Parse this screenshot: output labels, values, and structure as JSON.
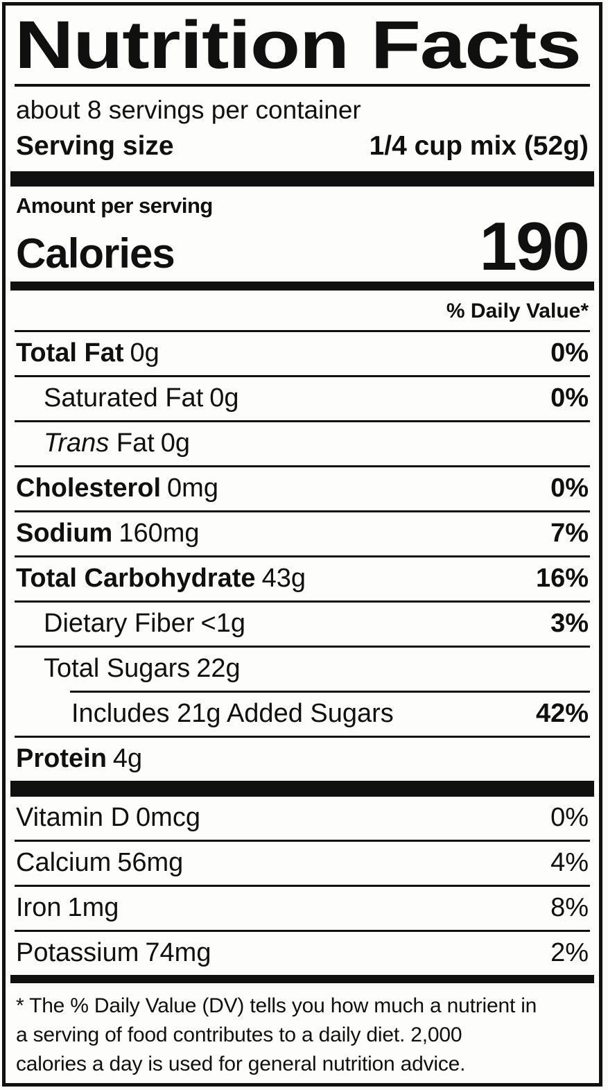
{
  "label": {
    "title": "Nutrition Facts",
    "servings_per_container": "about 8 servings per container",
    "serving_size_label": "Serving size",
    "serving_size_value": "1/4 cup mix (52g)",
    "amount_per_serving": "Amount per serving",
    "calories_label": "Calories",
    "calories_value": "190",
    "daily_value_header": "% Daily Value*",
    "nutrients": [
      {
        "name": "Total Fat",
        "amount": "0g",
        "dv": "0%",
        "name_bold": true,
        "dv_bold": true,
        "indent": 0
      },
      {
        "name": "Saturated Fat",
        "amount": "0g",
        "dv": "0%",
        "name_bold": false,
        "dv_bold": true,
        "indent": 1
      },
      {
        "name_italic": "Trans",
        "name": "Fat",
        "amount": "0g",
        "dv": "",
        "name_bold": false,
        "dv_bold": false,
        "indent": 1
      },
      {
        "name": "Cholesterol",
        "amount": "0mg",
        "dv": "0%",
        "name_bold": true,
        "dv_bold": true,
        "indent": 0
      },
      {
        "name": "Sodium",
        "amount": "160mg",
        "dv": "7%",
        "name_bold": true,
        "dv_bold": true,
        "indent": 0
      },
      {
        "name": "Total Carbohydrate",
        "amount": "43g",
        "dv": "16%",
        "name_bold": true,
        "dv_bold": true,
        "indent": 0
      },
      {
        "name": "Dietary Fiber",
        "amount": "<1g",
        "dv": "3%",
        "name_bold": false,
        "dv_bold": true,
        "indent": 1
      },
      {
        "name": "Total Sugars",
        "amount": "22g",
        "dv": "",
        "name_bold": false,
        "dv_bold": false,
        "indent": 1
      },
      {
        "name": "Includes 21g Added Sugars",
        "amount": "",
        "dv": "42%",
        "name_bold": false,
        "dv_bold": true,
        "indent": 2,
        "partial_rule": true
      },
      {
        "name": "Protein",
        "amount": "4g",
        "dv": "",
        "name_bold": true,
        "dv_bold": false,
        "indent": 0
      }
    ],
    "vitamins": [
      {
        "name": "Vitamin D",
        "amount": "0mcg",
        "dv": "0%",
        "name_bold": false,
        "dv_bold": false,
        "indent": 0
      },
      {
        "name": "Calcium",
        "amount": "56mg",
        "dv": "4%",
        "name_bold": false,
        "dv_bold": false,
        "indent": 0
      },
      {
        "name": "Iron",
        "amount": "1mg",
        "dv": "8%",
        "name_bold": false,
        "dv_bold": false,
        "indent": 0
      },
      {
        "name": "Potassium",
        "amount": "74mg",
        "dv": "2%",
        "name_bold": false,
        "dv_bold": false,
        "indent": 0
      }
    ],
    "footnote": {
      "lines": [
        "* The % Daily Value (DV) tells you how much a nutrient in",
        "a serving of food contributes to a daily diet. 2,000",
        "calories a day is used for general nutrition advice."
      ]
    },
    "colors": {
      "ink": "#101010",
      "paper": "#fdfdfc"
    }
  }
}
